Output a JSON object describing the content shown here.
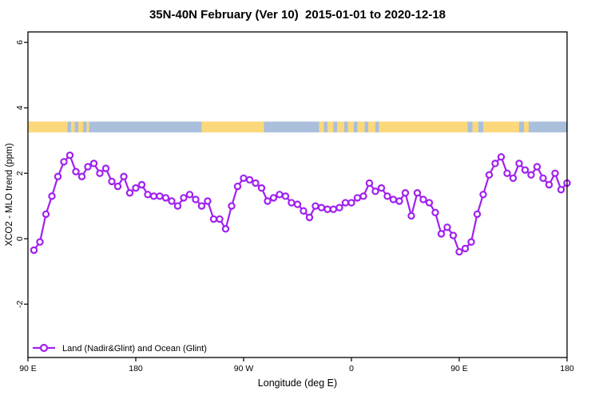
{
  "title": "35N-40N February (Ver 10)  2015-01-01 to 2020-12-18",
  "legend": {
    "label": "Land (Nadir&Glint) and Ocean (Glint)"
  },
  "colors": {
    "series": "#A021F0",
    "land_band": "#FCD87C",
    "ocean_band": "#A9BFDB",
    "axis": "#000000",
    "background": "#FFFFFF"
  },
  "chart_data": {
    "type": "line",
    "title": "35N-40N February (Ver 10)  2015-01-01 to 2020-12-18",
    "xlabel": "Longitude (deg E)",
    "ylabel": "XCO2 - MLO trend (ppm)",
    "grid": false,
    "legend_position": "bottom-left-inside",
    "x_axis": {
      "range_ext_deg": [
        90,
        540
      ],
      "ticks_ext_deg": [
        90,
        180,
        270,
        360,
        450,
        540
      ],
      "tick_labels": [
        "90 E",
        "180",
        "90 W",
        "0",
        "90 E",
        "180"
      ],
      "note": "longitude wraps eastward: 90E -> 180 -> 90W -> 0 -> 90E -> 180"
    },
    "y_axis": {
      "range": [
        -3.63,
        6.32
      ],
      "ticks": [
        -2,
        0,
        2,
        4,
        6
      ],
      "tick_labels": [
        "-2",
        "0",
        "2",
        "4",
        "6"
      ]
    },
    "series": [
      {
        "name": "Land (Nadir&Glint) and Ocean (Glint)",
        "color": "#A021F0",
        "marker": "open-circle",
        "x_ext_deg": [
          95,
          100,
          105,
          110,
          115,
          120,
          125,
          130,
          135,
          140,
          145,
          150,
          155,
          160,
          165,
          170,
          175,
          180,
          185,
          190,
          195,
          200,
          205,
          210,
          215,
          220,
          225,
          230,
          235,
          240,
          245,
          250,
          255,
          260,
          265,
          270,
          275,
          280,
          285,
          290,
          295,
          300,
          305,
          310,
          315,
          320,
          325,
          330,
          335,
          340,
          345,
          350,
          355,
          360,
          365,
          370,
          375,
          380,
          385,
          390,
          395,
          400,
          405,
          410,
          415,
          420,
          425,
          430,
          435,
          440,
          445,
          450,
          455,
          460,
          465,
          470,
          475,
          480,
          485,
          490,
          495,
          500,
          505,
          510,
          515,
          520,
          525,
          530,
          535,
          540
        ],
        "y_ppm": [
          -0.35,
          -0.1,
          0.75,
          1.3,
          1.9,
          2.35,
          2.55,
          2.05,
          1.9,
          2.2,
          2.3,
          2.0,
          2.15,
          1.75,
          1.6,
          1.9,
          1.4,
          1.55,
          1.65,
          1.35,
          1.3,
          1.3,
          1.25,
          1.15,
          1.0,
          1.25,
          1.35,
          1.2,
          1.0,
          1.15,
          0.6,
          0.6,
          0.3,
          1.0,
          1.6,
          1.85,
          1.8,
          1.7,
          1.55,
          1.15,
          1.25,
          1.35,
          1.3,
          1.1,
          1.05,
          0.85,
          0.65,
          1.0,
          0.95,
          0.9,
          0.9,
          0.95,
          1.1,
          1.1,
          1.25,
          1.3,
          1.7,
          1.45,
          1.55,
          1.3,
          1.2,
          1.15,
          1.4,
          0.7,
          1.4,
          1.2,
          1.1,
          0.8,
          0.15,
          0.35,
          0.1,
          -0.4,
          -0.3,
          -0.1,
          0.75,
          1.35,
          1.95,
          2.3,
          2.5,
          2.0,
          1.85,
          2.3,
          2.1,
          1.95,
          2.2,
          1.85,
          1.65,
          2.0,
          1.5,
          1.7
        ]
      }
    ],
    "surface_band": {
      "description": "land/ocean strip drawn across plot",
      "y_range_ppm": [
        3.25,
        3.58
      ],
      "land_color": "#FCD87C",
      "ocean_color": "#A9BFDB",
      "segments": [
        {
          "from": 90,
          "to": 123,
          "type": "land"
        },
        {
          "from": 123,
          "to": 126,
          "type": "ocean"
        },
        {
          "from": 126,
          "to": 129,
          "type": "land"
        },
        {
          "from": 129,
          "to": 132,
          "type": "ocean"
        },
        {
          "from": 132,
          "to": 136,
          "type": "land"
        },
        {
          "from": 136,
          "to": 139,
          "type": "ocean"
        },
        {
          "from": 139,
          "to": 141,
          "type": "land"
        },
        {
          "from": 141,
          "to": 235,
          "type": "ocean"
        },
        {
          "from": 235,
          "to": 287,
          "type": "land"
        },
        {
          "from": 287,
          "to": 333,
          "type": "ocean"
        },
        {
          "from": 333,
          "to": 337,
          "type": "land"
        },
        {
          "from": 337,
          "to": 340,
          "type": "ocean"
        },
        {
          "from": 340,
          "to": 345,
          "type": "land"
        },
        {
          "from": 345,
          "to": 348,
          "type": "ocean"
        },
        {
          "from": 348,
          "to": 354,
          "type": "land"
        },
        {
          "from": 354,
          "to": 357,
          "type": "ocean"
        },
        {
          "from": 357,
          "to": 362,
          "type": "land"
        },
        {
          "from": 362,
          "to": 365,
          "type": "ocean"
        },
        {
          "from": 365,
          "to": 371,
          "type": "land"
        },
        {
          "from": 371,
          "to": 374,
          "type": "ocean"
        },
        {
          "from": 374,
          "to": 380,
          "type": "land"
        },
        {
          "from": 380,
          "to": 383,
          "type": "ocean"
        },
        {
          "from": 383,
          "to": 457,
          "type": "land"
        },
        {
          "from": 457,
          "to": 461,
          "type": "ocean"
        },
        {
          "from": 461,
          "to": 466,
          "type": "land"
        },
        {
          "from": 466,
          "to": 470,
          "type": "ocean"
        },
        {
          "from": 470,
          "to": 500,
          "type": "land"
        },
        {
          "from": 500,
          "to": 504,
          "type": "ocean"
        },
        {
          "from": 504,
          "to": 508,
          "type": "land"
        },
        {
          "from": 508,
          "to": 540,
          "type": "ocean"
        }
      ]
    }
  }
}
